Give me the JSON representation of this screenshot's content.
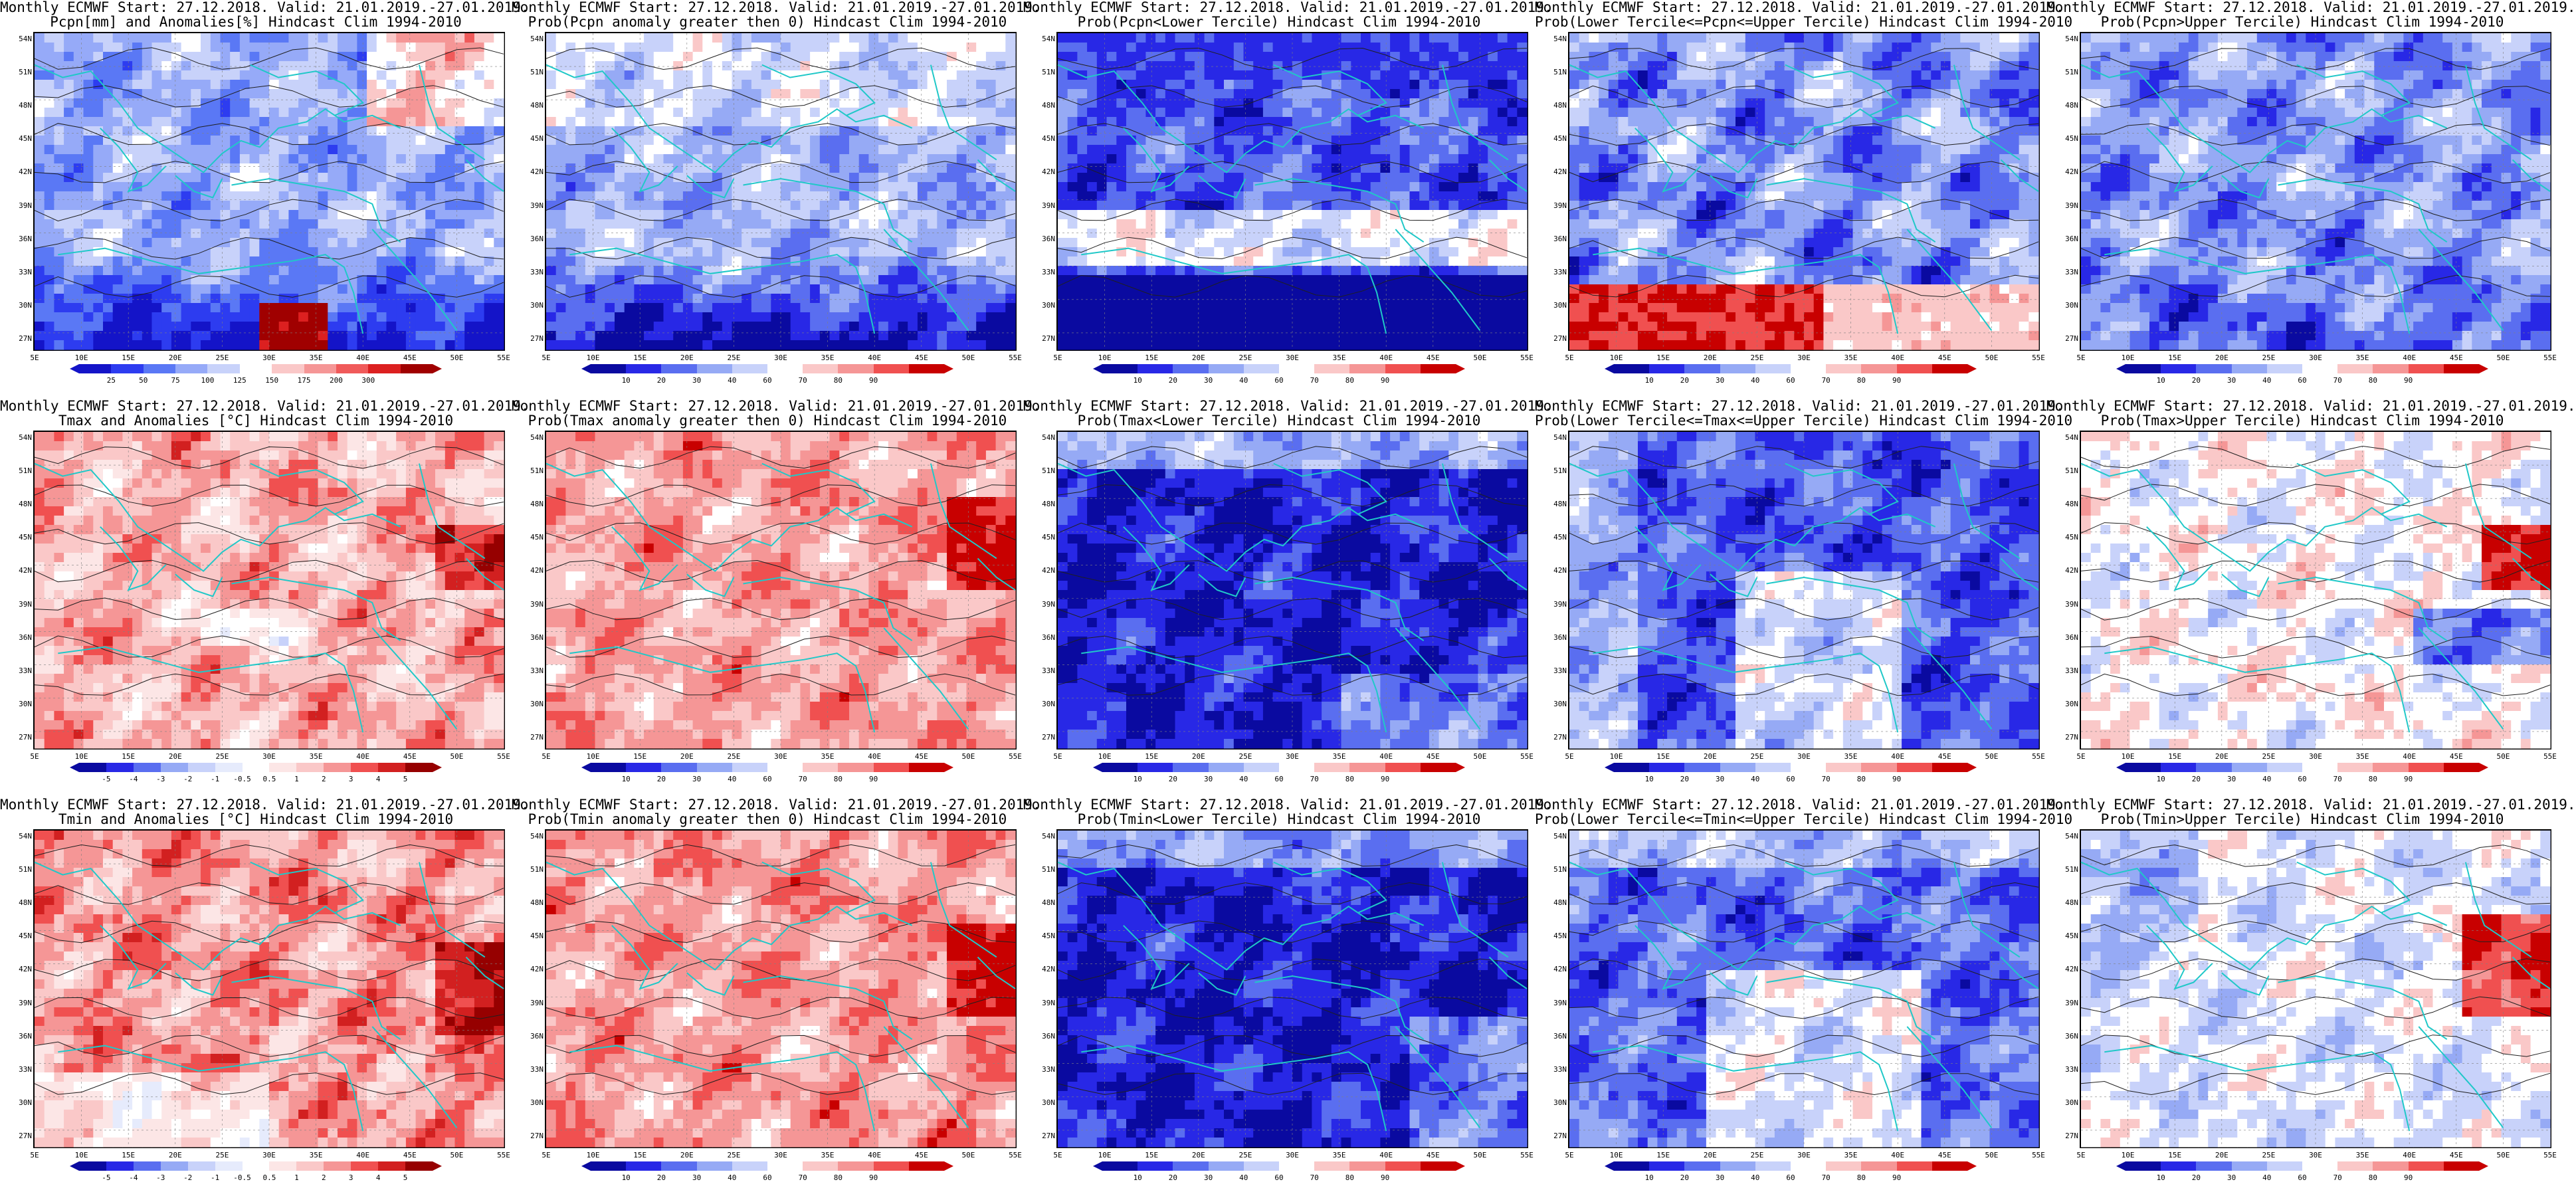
{
  "header_prefix": "Monthly ECMWF Start: 27.12.2018. Valid: 21.01.2019.-27.01.2019.",
  "lat_labels": [
    "54N",
    "51N",
    "48N",
    "45N",
    "42N",
    "39N",
    "36N",
    "33N",
    "30N",
    "27N"
  ],
  "lon_labels": [
    "5E",
    "10E",
    "15E",
    "20E",
    "25E",
    "30E",
    "35E",
    "40E",
    "45E",
    "50E",
    "55E"
  ],
  "panels": [
    {
      "id": "pcpn-anom",
      "line1": "Monthly ECMWF Start: 27.12.2018. Valid: 21.01.2019.-27.01.2019.",
      "line2": "Pcpn[mm] and Anomalies[%]",
      "line2_full": "Pcpn[mm] and Anomalies[%] Hindcast Clim 1994-2010",
      "scale": "pcpn",
      "pattern": "pcpn-anom"
    },
    {
      "id": "pcpn-prob-gt0",
      "line1": "Monthly ECMWF Start: 27.12.2018. Valid: 21.01.2019.-27.01.2019.",
      "line2_full": "Prob(Pcpn anomaly greater then 0) Hindcast Clim 1994-2010",
      "scale": "prob",
      "pattern": "pcpn-prob"
    },
    {
      "id": "pcpn-prob-lower",
      "line1": "Monthly ECMWF Start: 27.12.2018. Valid: 21.01.2019.-27.01.2019.",
      "line2_full": "Prob(Pcpn<Lower Tercile) Hindcast Clim 1994-2010",
      "scale": "prob",
      "pattern": "pcpn-lower"
    },
    {
      "id": "pcpn-prob-middle",
      "line1": "Monthly ECMWF Start: 27.12.2018. Valid: 21.01.2019.-27.01.2019.",
      "line2_full": "Prob(Lower Tercile<=Pcpn<=Upper Tercile) Hindcast Clim 1994-2010",
      "scale": "prob",
      "pattern": "pcpn-middle"
    },
    {
      "id": "pcpn-prob-upper",
      "line1": "Monthly ECMWF Start: 27.12.2018. Valid: 21.01.2019.-27.01.2019.",
      "line2_full": "Prob(Pcpn>Upper Tercile) Hindcast Clim 1994-2010",
      "scale": "prob",
      "pattern": "pcpn-upper"
    },
    {
      "id": "tmax-anom",
      "line1": "Monthly ECMWF Start: 27.12.2018. Valid: 21.01.2019.-27.01.2019.",
      "line2_full": "Tmax and Anomalies [°C] Hindcast Clim 1994-2010",
      "scale": "temp",
      "pattern": "tmax-anom"
    },
    {
      "id": "tmax-prob-gt0",
      "line1": "Monthly ECMWF Start: 27.12.2018. Valid: 21.01.2019.-27.01.2019.",
      "line2_full": "Prob(Tmax anomaly greater then 0) Hindcast Clim 1994-2010",
      "scale": "prob",
      "pattern": "tmax-prob"
    },
    {
      "id": "tmax-prob-lower",
      "line1": "Monthly ECMWF Start: 27.12.2018. Valid: 21.01.2019.-27.01.2019.",
      "line2_full": "Prob(Tmax<Lower Tercile) Hindcast Clim 1994-2010",
      "scale": "prob",
      "pattern": "tmax-lower"
    },
    {
      "id": "tmax-prob-middle",
      "line1": "Monthly ECMWF Start: 27.12.2018. Valid: 21.01.2019.-27.01.2019.",
      "line2_full": "Prob(Lower Tercile<=Tmax<=Upper Tercile) Hindcast Clim 1994-2010",
      "scale": "prob",
      "pattern": "tmax-middle"
    },
    {
      "id": "tmax-prob-upper",
      "line1": "Monthly ECMWF Start: 27.12.2018. Valid: 21.01.2019.-27.01.2019.",
      "line2_full": "Prob(Tmax>Upper Tercile) Hindcast Clim 1994-2010",
      "scale": "prob",
      "pattern": "tmax-upper"
    },
    {
      "id": "tmin-anom",
      "line1": "Monthly ECMWF Start: 27.12.2018. Valid: 21.01.2019.-27.01.2019.",
      "line2_full": "Tmin and Anomalies [°C] Hindcast Clim 1994-2010",
      "scale": "temp",
      "pattern": "tmin-anom"
    },
    {
      "id": "tmin-prob-gt0",
      "line1": "Monthly ECMWF Start: 27.12.2018. Valid: 21.01.2019.-27.01.2019.",
      "line2_full": "Prob(Tmin anomaly greater then 0) Hindcast Clim 1994-2010",
      "scale": "prob",
      "pattern": "tmin-prob"
    },
    {
      "id": "tmin-prob-lower",
      "line1": "Monthly ECMWF Start: 27.12.2018. Valid: 21.01.2019.-27.01.2019.",
      "line2_full": "Prob(Tmin<Lower Tercile) Hindcast Clim 1994-2010",
      "scale": "prob",
      "pattern": "tmin-lower"
    },
    {
      "id": "tmin-prob-middle",
      "line1": "Monthly ECMWF Start: 27.12.2018. Valid: 21.01.2019.-27.01.2019.",
      "line2_full": "Prob(Lower Tercile<=Tmin<=Upper Tercile) Hindcast Clim 1994-2010",
      "scale": "prob",
      "pattern": "tmin-middle"
    },
    {
      "id": "tmin-prob-upper",
      "line1": "Monthly ECMWF Start: 27.12.2018. Valid: 21.01.2019.-27.01.2019.",
      "line2_full": "Prob(Tmin>Upper Tercile) Hindcast Clim 1994-2010",
      "scale": "prob",
      "pattern": "tmin-upper"
    }
  ],
  "scales": {
    "pcpn": {
      "ticks": [
        "25",
        "50",
        "75",
        "100",
        "125",
        "150",
        "175",
        "200",
        "300"
      ],
      "colors": [
        "#1414c8",
        "#2d3cf0",
        "#5a78f5",
        "#96aaf8",
        "#c8d2fa",
        "#ffffff",
        "#fac8c8",
        "#f59696",
        "#f05a5a",
        "#dc2020",
        "#a00000"
      ]
    },
    "prob": {
      "ticks": [
        "10",
        "20",
        "30",
        "40",
        "60",
        "70",
        "80",
        "90"
      ],
      "colors": [
        "#0a0aa0",
        "#2828e6",
        "#5a6ef0",
        "#96aaf5",
        "#c8d2fa",
        "#ffffff",
        "#fac8c8",
        "#f59696",
        "#f05050",
        "#c80000"
      ]
    },
    "temp": {
      "ticks": [
        "-5",
        "-4",
        "-3",
        "-2",
        "-1",
        "-0.5",
        "0.5",
        "1",
        "2",
        "3",
        "4",
        "5"
      ],
      "colors": [
        "#0a0aa0",
        "#2828e6",
        "#5a6ef0",
        "#96aaf5",
        "#c8d2fa",
        "#e6ebfc",
        "#ffffff",
        "#fce6e6",
        "#fac8c8",
        "#f59696",
        "#f05050",
        "#d22020",
        "#960000"
      ]
    }
  },
  "map_colors": {
    "coast": "#20c8c8",
    "contour": "#202020",
    "grid": "#808080"
  }
}
